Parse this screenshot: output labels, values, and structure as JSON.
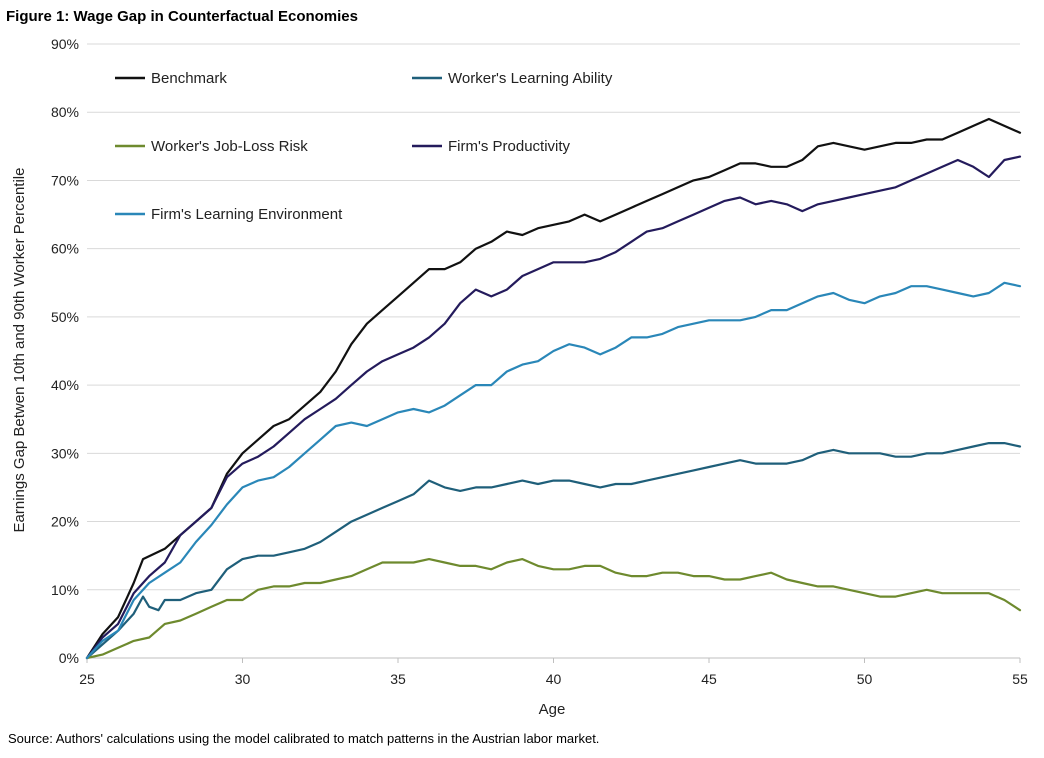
{
  "figure": {
    "title": "Figure 1: Wage Gap in Counterfactual Economies",
    "source": "Source: Authors' calculations using the model calibrated to match patterns in the Austrian labor market."
  },
  "chart_data": {
    "type": "line",
    "title": "Figure 1: Wage Gap in Counterfactual Economies",
    "xlabel": "Age",
    "ylabel": "Earnings Gap Betwen 10th and 90th Worker Percentile",
    "xlim": [
      25,
      55
    ],
    "ylim": [
      0,
      90
    ],
    "xticks": [
      "25",
      "30",
      "35",
      "40",
      "45",
      "50",
      "55"
    ],
    "yticks": [
      "0%",
      "10%",
      "20%",
      "30%",
      "40%",
      "50%",
      "60%",
      "70%",
      "80%",
      "90%"
    ],
    "legend_position": "top-left",
    "series": [
      {
        "name": "Benchmark",
        "color": "#111111",
        "points": [
          [
            25,
            0
          ],
          [
            25.5,
            3.5
          ],
          [
            26,
            6
          ],
          [
            26.5,
            11
          ],
          [
            26.8,
            14.5
          ],
          [
            27.5,
            16
          ],
          [
            28,
            18
          ],
          [
            28.5,
            20
          ],
          [
            29,
            22
          ],
          [
            29.5,
            27
          ],
          [
            30,
            30
          ],
          [
            30.5,
            32
          ],
          [
            31,
            34
          ],
          [
            31.5,
            35
          ],
          [
            32,
            37
          ],
          [
            32.5,
            39
          ],
          [
            33,
            42
          ],
          [
            33.5,
            46
          ],
          [
            34,
            49
          ],
          [
            34.5,
            51
          ],
          [
            35,
            53
          ],
          [
            35.5,
            55
          ],
          [
            36,
            57
          ],
          [
            36.5,
            57
          ],
          [
            37,
            58
          ],
          [
            37.5,
            60
          ],
          [
            38,
            61
          ],
          [
            38.5,
            62.5
          ],
          [
            39,
            62
          ],
          [
            39.5,
            63
          ],
          [
            40,
            63.5
          ],
          [
            40.5,
            64
          ],
          [
            41,
            65
          ],
          [
            41.5,
            64
          ],
          [
            42,
            65
          ],
          [
            42.5,
            66
          ],
          [
            43,
            67
          ],
          [
            43.5,
            68
          ],
          [
            44,
            69
          ],
          [
            44.5,
            70
          ],
          [
            45,
            70.5
          ],
          [
            45.5,
            71.5
          ],
          [
            46,
            72.5
          ],
          [
            46.5,
            72.5
          ],
          [
            47,
            72
          ],
          [
            47.5,
            72
          ],
          [
            48,
            73
          ],
          [
            48.5,
            75
          ],
          [
            49,
            75.5
          ],
          [
            49.5,
            75
          ],
          [
            50,
            74.5
          ],
          [
            50.5,
            75
          ],
          [
            51,
            75.5
          ],
          [
            51.5,
            75.5
          ],
          [
            52,
            76
          ],
          [
            52.5,
            76
          ],
          [
            53,
            77
          ],
          [
            53.5,
            78
          ],
          [
            54,
            79
          ],
          [
            54.5,
            78
          ],
          [
            55,
            77
          ]
        ]
      },
      {
        "name": "Worker's Learning Ability",
        "color": "#1f5f7a",
        "points": [
          [
            25,
            0
          ],
          [
            25.5,
            2
          ],
          [
            26,
            4
          ],
          [
            26.5,
            6.5
          ],
          [
            26.8,
            9
          ],
          [
            27,
            7.5
          ],
          [
            27.3,
            7
          ],
          [
            27.5,
            8.5
          ],
          [
            28,
            8.5
          ],
          [
            28.5,
            9.5
          ],
          [
            29,
            10
          ],
          [
            29.5,
            13
          ],
          [
            30,
            14.5
          ],
          [
            30.5,
            15
          ],
          [
            31,
            15
          ],
          [
            31.5,
            15.5
          ],
          [
            32,
            16
          ],
          [
            32.5,
            17
          ],
          [
            33,
            18.5
          ],
          [
            33.5,
            20
          ],
          [
            34,
            21
          ],
          [
            34.5,
            22
          ],
          [
            35,
            23
          ],
          [
            35.5,
            24
          ],
          [
            36,
            26
          ],
          [
            36.5,
            25
          ],
          [
            37,
            24.5
          ],
          [
            37.5,
            25
          ],
          [
            38,
            25
          ],
          [
            38.5,
            25.5
          ],
          [
            39,
            26
          ],
          [
            39.5,
            25.5
          ],
          [
            40,
            26
          ],
          [
            40.5,
            26
          ],
          [
            41,
            25.5
          ],
          [
            41.5,
            25
          ],
          [
            42,
            25.5
          ],
          [
            42.5,
            25.5
          ],
          [
            43,
            26
          ],
          [
            43.5,
            26.5
          ],
          [
            44,
            27
          ],
          [
            44.5,
            27.5
          ],
          [
            45,
            28
          ],
          [
            45.5,
            28.5
          ],
          [
            46,
            29
          ],
          [
            46.5,
            28.5
          ],
          [
            47,
            28.5
          ],
          [
            47.5,
            28.5
          ],
          [
            48,
            29
          ],
          [
            48.5,
            30
          ],
          [
            49,
            30.5
          ],
          [
            49.5,
            30
          ],
          [
            50,
            30
          ],
          [
            50.5,
            30
          ],
          [
            51,
            29.5
          ],
          [
            51.5,
            29.5
          ],
          [
            52,
            30
          ],
          [
            52.5,
            30
          ],
          [
            53,
            30.5
          ],
          [
            53.5,
            31
          ],
          [
            54,
            31.5
          ],
          [
            54.5,
            31.5
          ],
          [
            55,
            31
          ]
        ]
      },
      {
        "name": "Worker's Job-Loss Risk",
        "color": "#6e8a2e",
        "points": [
          [
            25,
            0
          ],
          [
            25.5,
            0.5
          ],
          [
            26,
            1.5
          ],
          [
            26.5,
            2.5
          ],
          [
            27,
            3
          ],
          [
            27.5,
            5
          ],
          [
            28,
            5.5
          ],
          [
            28.5,
            6.5
          ],
          [
            29,
            7.5
          ],
          [
            29.5,
            8.5
          ],
          [
            30,
            8.5
          ],
          [
            30.5,
            10
          ],
          [
            31,
            10.5
          ],
          [
            31.5,
            10.5
          ],
          [
            32,
            11
          ],
          [
            32.5,
            11
          ],
          [
            33,
            11.5
          ],
          [
            33.5,
            12
          ],
          [
            34,
            13
          ],
          [
            34.5,
            14
          ],
          [
            35,
            14
          ],
          [
            35.5,
            14
          ],
          [
            36,
            14.5
          ],
          [
            36.5,
            14
          ],
          [
            37,
            13.5
          ],
          [
            37.5,
            13.5
          ],
          [
            38,
            13
          ],
          [
            38.5,
            14
          ],
          [
            39,
            14.5
          ],
          [
            39.5,
            13.5
          ],
          [
            40,
            13
          ],
          [
            40.5,
            13
          ],
          [
            41,
            13.5
          ],
          [
            41.5,
            13.5
          ],
          [
            42,
            12.5
          ],
          [
            42.5,
            12
          ],
          [
            43,
            12
          ],
          [
            43.5,
            12.5
          ],
          [
            44,
            12.5
          ],
          [
            44.5,
            12
          ],
          [
            45,
            12
          ],
          [
            45.5,
            11.5
          ],
          [
            46,
            11.5
          ],
          [
            46.5,
            12
          ],
          [
            47,
            12.5
          ],
          [
            47.5,
            11.5
          ],
          [
            48,
            11
          ],
          [
            48.5,
            10.5
          ],
          [
            49,
            10.5
          ],
          [
            49.5,
            10
          ],
          [
            50,
            9.5
          ],
          [
            50.5,
            9
          ],
          [
            51,
            9
          ],
          [
            51.5,
            9.5
          ],
          [
            52,
            10
          ],
          [
            52.5,
            9.5
          ],
          [
            53,
            9.5
          ],
          [
            53.5,
            9.5
          ],
          [
            54,
            9.5
          ],
          [
            54.5,
            8.5
          ],
          [
            55,
            7
          ]
        ]
      },
      {
        "name": "Firm's Productivity",
        "color": "#241b5c",
        "points": [
          [
            25,
            0
          ],
          [
            25.5,
            3
          ],
          [
            26,
            5
          ],
          [
            26.5,
            9.5
          ],
          [
            27,
            12
          ],
          [
            27.5,
            14
          ],
          [
            28,
            18
          ],
          [
            28.5,
            20
          ],
          [
            29,
            22
          ],
          [
            29.5,
            26.5
          ],
          [
            30,
            28.5
          ],
          [
            30.5,
            29.5
          ],
          [
            31,
            31
          ],
          [
            31.5,
            33
          ],
          [
            32,
            35
          ],
          [
            32.5,
            36.5
          ],
          [
            33,
            38
          ],
          [
            33.5,
            40
          ],
          [
            34,
            42
          ],
          [
            34.5,
            43.5
          ],
          [
            35,
            44.5
          ],
          [
            35.5,
            45.5
          ],
          [
            36,
            47
          ],
          [
            36.5,
            49
          ],
          [
            37,
            52
          ],
          [
            37.5,
            54
          ],
          [
            38,
            53
          ],
          [
            38.5,
            54
          ],
          [
            39,
            56
          ],
          [
            39.5,
            57
          ],
          [
            40,
            58
          ],
          [
            40.5,
            58
          ],
          [
            41,
            58
          ],
          [
            41.5,
            58.5
          ],
          [
            42,
            59.5
          ],
          [
            42.5,
            61
          ],
          [
            43,
            62.5
          ],
          [
            43.5,
            63
          ],
          [
            44,
            64
          ],
          [
            44.5,
            65
          ],
          [
            45,
            66
          ],
          [
            45.5,
            67
          ],
          [
            46,
            67.5
          ],
          [
            46.5,
            66.5
          ],
          [
            47,
            67
          ],
          [
            47.5,
            66.5
          ],
          [
            48,
            65.5
          ],
          [
            48.5,
            66.5
          ],
          [
            49,
            67
          ],
          [
            49.5,
            67.5
          ],
          [
            50,
            68
          ],
          [
            50.5,
            68.5
          ],
          [
            51,
            69
          ],
          [
            51.5,
            70
          ],
          [
            52,
            71
          ],
          [
            52.5,
            72
          ],
          [
            53,
            73
          ],
          [
            53.5,
            72
          ],
          [
            54,
            70.5
          ],
          [
            54.5,
            73
          ],
          [
            55,
            73.5
          ]
        ]
      },
      {
        "name": "Firm's Learning Environment",
        "color": "#2a87b8",
        "points": [
          [
            25,
            0
          ],
          [
            25.5,
            2.5
          ],
          [
            26,
            4
          ],
          [
            26.5,
            8.5
          ],
          [
            27,
            11
          ],
          [
            27.5,
            12.5
          ],
          [
            28,
            14
          ],
          [
            28.5,
            17
          ],
          [
            29,
            19.5
          ],
          [
            29.5,
            22.5
          ],
          [
            30,
            25
          ],
          [
            30.5,
            26
          ],
          [
            31,
            26.5
          ],
          [
            31.5,
            28
          ],
          [
            32,
            30
          ],
          [
            32.5,
            32
          ],
          [
            33,
            34
          ],
          [
            33.5,
            34.5
          ],
          [
            34,
            34
          ],
          [
            34.5,
            35
          ],
          [
            35,
            36
          ],
          [
            35.5,
            36.5
          ],
          [
            36,
            36
          ],
          [
            36.5,
            37
          ],
          [
            37,
            38.5
          ],
          [
            37.5,
            40
          ],
          [
            38,
            40
          ],
          [
            38.5,
            42
          ],
          [
            39,
            43
          ],
          [
            39.5,
            43.5
          ],
          [
            40,
            45
          ],
          [
            40.5,
            46
          ],
          [
            41,
            45.5
          ],
          [
            41.5,
            44.5
          ],
          [
            42,
            45.5
          ],
          [
            42.5,
            47
          ],
          [
            43,
            47
          ],
          [
            43.5,
            47.5
          ],
          [
            44,
            48.5
          ],
          [
            44.5,
            49
          ],
          [
            45,
            49.5
          ],
          [
            45.5,
            49.5
          ],
          [
            46,
            49.5
          ],
          [
            46.5,
            50
          ],
          [
            47,
            51
          ],
          [
            47.5,
            51
          ],
          [
            48,
            52
          ],
          [
            48.5,
            53
          ],
          [
            49,
            53.5
          ],
          [
            49.5,
            52.5
          ],
          [
            50,
            52
          ],
          [
            50.5,
            53
          ],
          [
            51,
            53.5
          ],
          [
            51.5,
            54.5
          ],
          [
            52,
            54.5
          ],
          [
            52.5,
            54
          ],
          [
            53,
            53.5
          ],
          [
            53.5,
            53
          ],
          [
            54,
            53.5
          ],
          [
            54.5,
            55
          ],
          [
            55,
            54.5
          ]
        ]
      }
    ]
  }
}
